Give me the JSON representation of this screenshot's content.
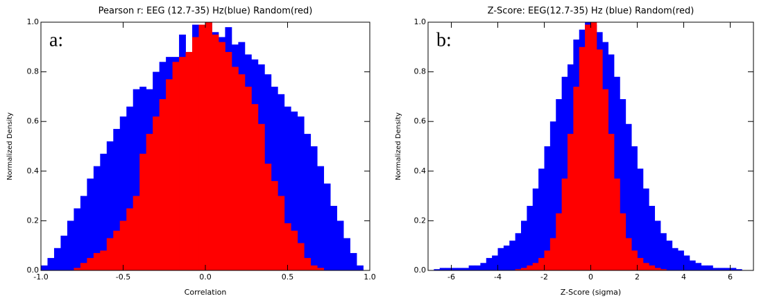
{
  "chart_data": [
    {
      "type": "histogram",
      "title": "Pearson r: EEG (12.7-35) Hz(blue) Random(red)",
      "annotation": "a:",
      "x_label": "Correlation",
      "y_label": "Normalized Density",
      "xlim": [
        -1,
        1
      ],
      "xticks": [
        {
          "value": -1,
          "label": "-1.0"
        },
        -0.5,
        {
          "value": 0,
          "label": "0.0"
        },
        0.5,
        {
          "value": 1,
          "label": "1.0"
        }
      ],
      "ylim": [
        0,
        1
      ],
      "yticks": [
        {
          "value": 0,
          "label": "0.0"
        },
        0.2,
        0.4,
        0.6,
        0.8,
        {
          "value": 1,
          "label": "1.0"
        }
      ],
      "bins": [
        -1.0,
        -0.96,
        -0.92,
        -0.88,
        -0.84,
        -0.8,
        -0.76,
        -0.72,
        -0.68,
        -0.64,
        -0.6,
        -0.56,
        -0.52,
        -0.48,
        -0.44,
        -0.4,
        -0.36,
        -0.32,
        -0.28,
        -0.24,
        -0.2,
        -0.16,
        -0.12,
        -0.08,
        -0.04,
        0.0,
        0.04,
        0.08,
        0.12,
        0.16,
        0.2,
        0.24,
        0.28,
        0.32,
        0.36,
        0.4,
        0.44,
        0.48,
        0.52,
        0.56,
        0.6,
        0.64,
        0.68,
        0.72,
        0.76,
        0.8,
        0.84,
        0.88,
        0.92,
        0.96,
        1.0
      ],
      "series": [
        {
          "color": "#0000ff",
          "values": [
            0.02,
            0.05,
            0.09,
            0.14,
            0.2,
            0.25,
            0.3,
            0.37,
            0.42,
            0.47,
            0.52,
            0.57,
            0.62,
            0.66,
            0.73,
            0.74,
            0.73,
            0.8,
            0.84,
            0.86,
            0.86,
            0.95,
            0.88,
            0.99,
            0.98,
            1.0,
            0.96,
            0.94,
            0.98,
            0.91,
            0.92,
            0.87,
            0.85,
            0.83,
            0.79,
            0.74,
            0.71,
            0.66,
            0.64,
            0.62,
            0.55,
            0.5,
            0.42,
            0.35,
            0.26,
            0.2,
            0.13,
            0.07,
            0.02,
            0
          ]
        },
        {
          "color": "#ff0000",
          "values": [
            0,
            0,
            0,
            0,
            0,
            0.01,
            0.03,
            0.05,
            0.07,
            0.08,
            0.13,
            0.16,
            0.2,
            0.25,
            0.3,
            0.47,
            0.55,
            0.62,
            0.69,
            0.77,
            0.84,
            0.86,
            0.88,
            0.94,
            0.99,
            1.0,
            0.95,
            0.92,
            0.88,
            0.82,
            0.79,
            0.74,
            0.67,
            0.59,
            0.43,
            0.36,
            0.3,
            0.19,
            0.16,
            0.11,
            0.05,
            0.02,
            0.01,
            0,
            0,
            0,
            0,
            0,
            0,
            0
          ]
        }
      ]
    },
    {
      "type": "histogram",
      "title": "Z-Score: EEG(12.7-35) Hz (blue) Random(red)",
      "annotation": "b:",
      "x_label": "Z-Score (sigma)",
      "y_label": "Normalized Density",
      "xlim": [
        -7,
        7
      ],
      "xticks": [
        -6,
        -4,
        -2,
        0,
        2,
        4,
        6
      ],
      "ylim": [
        0,
        1
      ],
      "yticks": [
        {
          "value": 0,
          "label": "0.0"
        },
        0.2,
        0.4,
        0.6,
        0.8,
        {
          "value": 1,
          "label": "1.0"
        }
      ],
      "bins": [
        -7,
        -6.75,
        -6.5,
        -6.25,
        -6,
        -5.75,
        -5.5,
        -5.25,
        -5,
        -4.75,
        -4.5,
        -4.25,
        -4,
        -3.75,
        -3.5,
        -3.25,
        -3,
        -2.75,
        -2.5,
        -2.25,
        -2,
        -1.75,
        -1.5,
        -1.25,
        -1,
        -0.75,
        -0.5,
        -0.25,
        0,
        0.25,
        0.5,
        0.75,
        1,
        1.25,
        1.5,
        1.75,
        2,
        2.25,
        2.5,
        2.75,
        3,
        3.25,
        3.5,
        3.75,
        4,
        4.25,
        4.5,
        4.75,
        5,
        5.25,
        5.5,
        5.75,
        6,
        6.25,
        6.5,
        6.75,
        7
      ],
      "series": [
        {
          "color": "#0000ff",
          "values": [
            0,
            0.005,
            0.01,
            0.01,
            0.01,
            0.01,
            0.01,
            0.02,
            0.02,
            0.03,
            0.05,
            0.06,
            0.09,
            0.1,
            0.12,
            0.15,
            0.2,
            0.26,
            0.33,
            0.41,
            0.5,
            0.6,
            0.69,
            0.78,
            0.83,
            0.93,
            0.97,
            1.0,
            0.99,
            0.96,
            0.92,
            0.87,
            0.78,
            0.69,
            0.59,
            0.5,
            0.41,
            0.33,
            0.26,
            0.2,
            0.15,
            0.12,
            0.09,
            0.08,
            0.06,
            0.04,
            0.03,
            0.02,
            0.02,
            0.01,
            0.01,
            0.01,
            0.01,
            0.005,
            0,
            0
          ]
        },
        {
          "color": "#ff0000",
          "values": [
            0,
            0,
            0,
            0,
            0,
            0,
            0,
            0,
            0,
            0,
            0,
            0,
            0,
            0,
            0,
            0.005,
            0.01,
            0.02,
            0.03,
            0.05,
            0.08,
            0.13,
            0.23,
            0.37,
            0.55,
            0.74,
            0.9,
            0.99,
            1.0,
            0.89,
            0.73,
            0.55,
            0.37,
            0.23,
            0.13,
            0.08,
            0.05,
            0.03,
            0.02,
            0.01,
            0.005,
            0,
            0,
            0,
            0,
            0,
            0,
            0,
            0,
            0,
            0,
            0,
            0,
            0,
            0,
            0
          ]
        }
      ]
    }
  ]
}
